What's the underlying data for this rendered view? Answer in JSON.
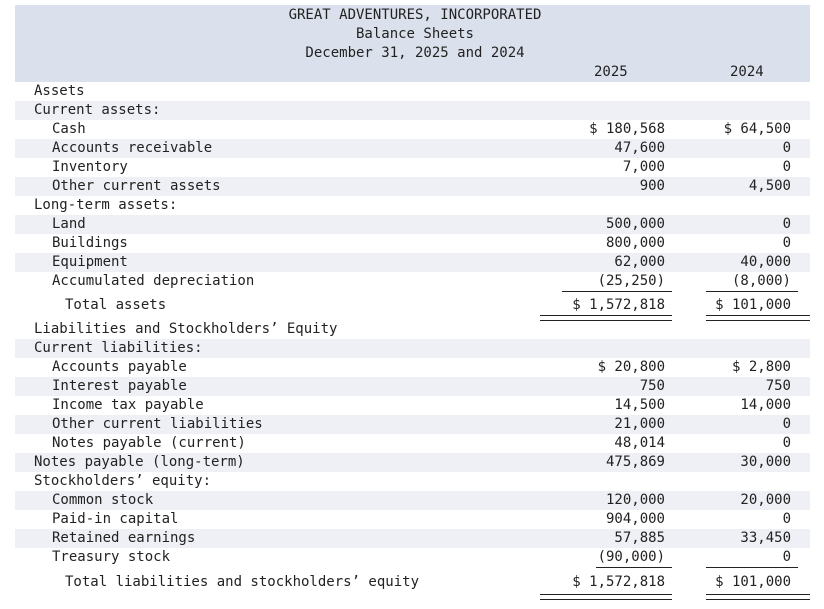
{
  "header": {
    "company": "GREAT ADVENTURES, INCORPORATED",
    "statement": "Balance Sheets",
    "date": "December 31, 2025 and 2024",
    "year_2025": "2025",
    "year_2024": "2024"
  },
  "rows": [
    {
      "label": "Assets",
      "indent": 0,
      "v2025": "",
      "v2024": ""
    },
    {
      "label": "Current assets:",
      "indent": 0,
      "v2025": "",
      "v2024": ""
    },
    {
      "label": "Cash",
      "indent": 1,
      "v2025": "$ 180,568",
      "v2024": "$ 64,500"
    },
    {
      "label": "Accounts receivable",
      "indent": 1,
      "v2025": "47,600",
      "v2024": "0"
    },
    {
      "label": "Inventory",
      "indent": 1,
      "v2025": "7,000",
      "v2024": "0"
    },
    {
      "label": "Other current assets",
      "indent": 1,
      "v2025": "900",
      "v2024": "4,500"
    },
    {
      "label": "Long-term assets:",
      "indent": 0,
      "v2025": "",
      "v2024": ""
    },
    {
      "label": "Land",
      "indent": 1,
      "v2025": "500,000",
      "v2024": "0"
    },
    {
      "label": "Buildings",
      "indent": 1,
      "v2025": "800,000",
      "v2024": "0"
    },
    {
      "label": "Equipment",
      "indent": 1,
      "v2025": "62,000",
      "v2024": "40,000"
    },
    {
      "label": "Accumulated depreciation",
      "indent": 1,
      "v2025": "(25,250)",
      "v2024": "(8,000)"
    },
    {
      "label": "Total assets",
      "indent": 2,
      "v2025": "$ 1,572,818",
      "v2024": "$ 101,000"
    },
    {
      "label": "Liabilities and Stockholders’ Equity",
      "indent": 0,
      "v2025": "",
      "v2024": ""
    },
    {
      "label": "Current liabilities:",
      "indent": 0,
      "v2025": "",
      "v2024": ""
    },
    {
      "label": "Accounts payable",
      "indent": 1,
      "v2025": "$ 20,800",
      "v2024": "$ 2,800"
    },
    {
      "label": "Interest payable",
      "indent": 1,
      "v2025": "750",
      "v2024": "750"
    },
    {
      "label": "Income tax payable",
      "indent": 1,
      "v2025": "14,500",
      "v2024": "14,000"
    },
    {
      "label": "Other current liabilities",
      "indent": 1,
      "v2025": "21,000",
      "v2024": "0"
    },
    {
      "label": "Notes payable (current)",
      "indent": 1,
      "v2025": "48,014",
      "v2024": "0"
    },
    {
      "label": "Notes payable (long-term)",
      "indent": 0,
      "v2025": "475,869",
      "v2024": "30,000"
    },
    {
      "label": "Stockholders’ equity:",
      "indent": 0,
      "v2025": "",
      "v2024": ""
    },
    {
      "label": "Common stock",
      "indent": 1,
      "v2025": "120,000",
      "v2024": "20,000"
    },
    {
      "label": "Paid-in capital",
      "indent": 1,
      "v2025": "904,000",
      "v2024": "0"
    },
    {
      "label": "Retained earnings",
      "indent": 1,
      "v2025": "57,885",
      "v2024": "33,450"
    },
    {
      "label": "Treasury stock",
      "indent": 1,
      "v2025": "(90,000)",
      "v2024": "0"
    },
    {
      "label": "Total liabilities and stockholders’ equity",
      "indent": 2,
      "v2025": "$ 1,572,818",
      "v2024": "$ 101,000"
    }
  ]
}
